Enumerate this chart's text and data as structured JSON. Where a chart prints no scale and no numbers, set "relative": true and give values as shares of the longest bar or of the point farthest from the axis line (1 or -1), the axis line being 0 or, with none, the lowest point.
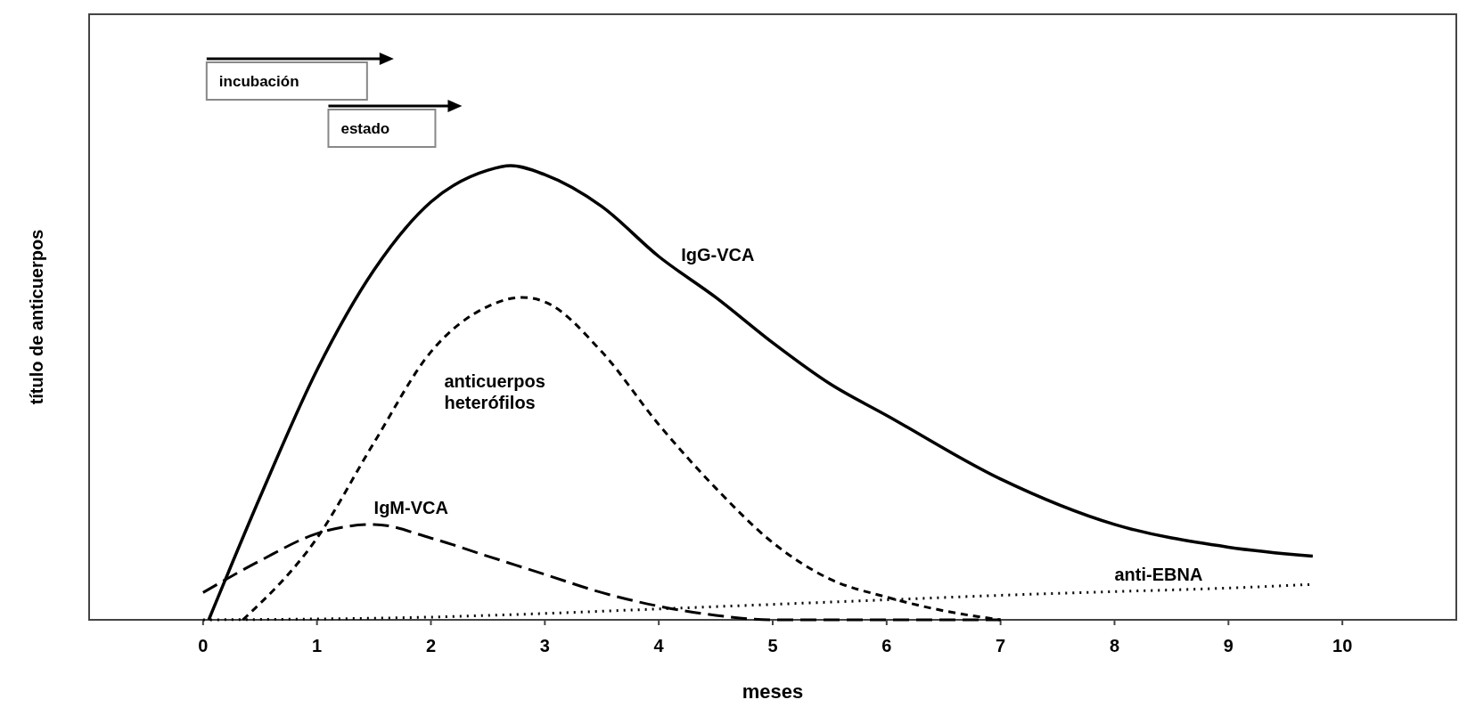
{
  "chart_data": {
    "type": "line",
    "relative": true,
    "xlabel": "meses",
    "ylabel": "título de anticuerpos",
    "xlim": [
      -1,
      11
    ],
    "xticks": [
      0,
      1,
      2,
      3,
      4,
      5,
      6,
      7,
      8,
      9,
      10
    ],
    "grid": false,
    "marker": "none",
    "annotations": [
      "incubación",
      "estado"
    ],
    "series": [
      {
        "name": "IgG-VCA",
        "color": "#000000",
        "line_style": "solid",
        "x": [
          0.05,
          0.5,
          1,
          1.5,
          2,
          2.5,
          2.7,
          3,
          3.5,
          4,
          4.5,
          5,
          5.5,
          6,
          7,
          8,
          9,
          9.74
        ],
        "values": [
          0,
          0.27,
          0.55,
          0.77,
          0.92,
          0.99,
          1,
          0.98,
          0.91,
          0.8,
          0.71,
          0.61,
          0.52,
          0.45,
          0.31,
          0.21,
          0.16,
          0.14
        ]
      },
      {
        "name": "anticuerpos heterófilos",
        "color": "#000000",
        "line_style": "dashed",
        "x": [
          0.35,
          1,
          1.5,
          2,
          2.5,
          2.8,
          3,
          3.5,
          4,
          4.5,
          5,
          5.5,
          6,
          6.5,
          7
        ],
        "values": [
          0,
          0.18,
          0.39,
          0.59,
          0.69,
          0.71,
          0.7,
          0.59,
          0.43,
          0.29,
          0.17,
          0.09,
          0.05,
          0.02,
          0
        ]
      },
      {
        "name": "IgM-VCA",
        "color": "#000000",
        "line_style": "dashed",
        "x": [
          0,
          0.5,
          1,
          1.5,
          2,
          2.5,
          3,
          3.5,
          4,
          4.5,
          5,
          6,
          7
        ],
        "values": [
          0.06,
          0.13,
          0.19,
          0.21,
          0.18,
          0.14,
          0.1,
          0.06,
          0.03,
          0.01,
          0,
          0,
          0
        ]
      },
      {
        "name": "anti-EBNA",
        "color": "#000000",
        "line_style": "dotted",
        "x": [
          0,
          2,
          3,
          4,
          5,
          6,
          7,
          8,
          9,
          9.74
        ],
        "values": [
          0,
          0.006,
          0.014,
          0.024,
          0.034,
          0.044,
          0.054,
          0.062,
          0.07,
          0.078
        ]
      }
    ]
  }
}
